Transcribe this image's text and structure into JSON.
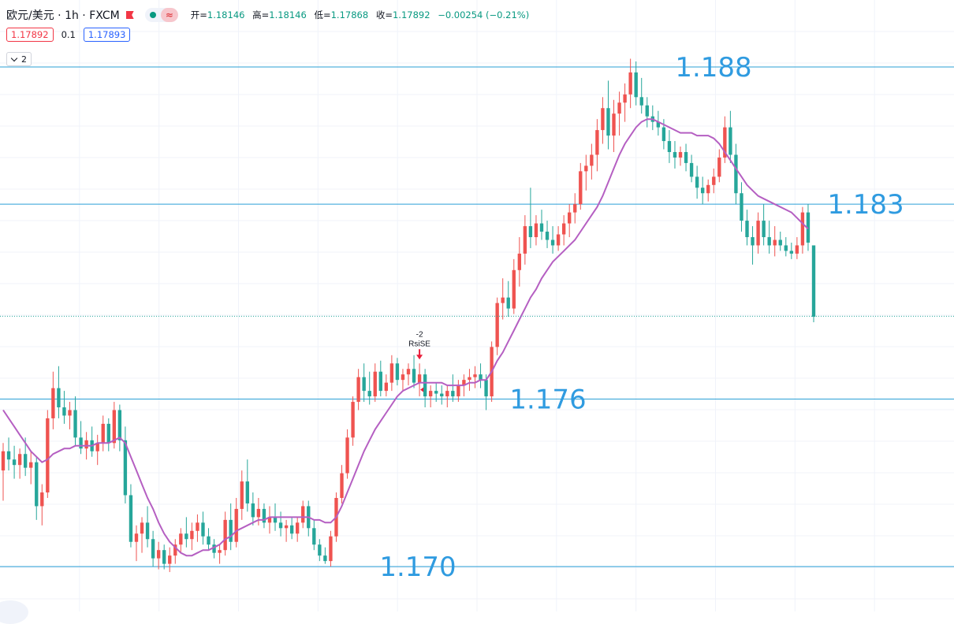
{
  "header": {
    "symbol": "欧元/美元 · 1h · FXCM",
    "ohlc": {
      "open_label": "开=",
      "open": "1.18146",
      "high_label": "高=",
      "high": "1.18146",
      "low_label": "低=",
      "low": "1.17868",
      "close_label": "收=",
      "close": "1.17892",
      "change": "−0.00254 (−0.21%)"
    },
    "sell_price": "1.17892",
    "spread": "0.1",
    "buy_price": "1.17893",
    "collapse_count": "2"
  },
  "colors": {
    "up": "#ef5350",
    "down": "#26a69a",
    "ma": "#b55fc2",
    "level_line": "#2a9fd6",
    "level_text": "#2f9be0",
    "grid": "#f0f3fa"
  },
  "chart_data": {
    "type": "candlestick",
    "indicator": "moving average",
    "price_range": [
      1.1692,
      1.1882
    ],
    "horizontal_levels": [
      {
        "price": 1.188,
        "label": "1.188"
      },
      {
        "price": 1.183,
        "label": "1.183"
      },
      {
        "price": 1.1759,
        "label": "1.176"
      },
      {
        "price": 1.1698,
        "label": "1.170"
      }
    ],
    "current_price": 1.17892,
    "signal": {
      "label_top": "-2",
      "label_bottom": "RsiSE",
      "color": "#e91e3a"
    },
    "signal_candle_index": 75,
    "candles": [
      [
        1.1733,
        1.1743,
        1.1722,
        1.174
      ],
      [
        1.174,
        1.1745,
        1.1733,
        1.1737
      ],
      [
        1.1737,
        1.1742,
        1.173,
        1.1735
      ],
      [
        1.1735,
        1.1741,
        1.173,
        1.1739
      ],
      [
        1.1739,
        1.1745,
        1.1731,
        1.1734
      ],
      [
        1.1734,
        1.174,
        1.1728,
        1.1736
      ],
      [
        1.1736,
        1.1738,
        1.1715,
        1.172
      ],
      [
        1.172,
        1.1728,
        1.1713,
        1.1725
      ],
      [
        1.1725,
        1.1755,
        1.1723,
        1.1752
      ],
      [
        1.1752,
        1.1769,
        1.1748,
        1.1763
      ],
      [
        1.1763,
        1.1771,
        1.1752,
        1.1756
      ],
      [
        1.1756,
        1.1762,
        1.175,
        1.1753
      ],
      [
        1.1753,
        1.1758,
        1.1748,
        1.1755
      ],
      [
        1.1755,
        1.176,
        1.1742,
        1.1745
      ],
      [
        1.1745,
        1.1751,
        1.1739,
        1.1741
      ],
      [
        1.1741,
        1.1747,
        1.1737,
        1.1744
      ],
      [
        1.1744,
        1.1749,
        1.1738,
        1.174
      ],
      [
        1.174,
        1.1746,
        1.1735,
        1.1743
      ],
      [
        1.1743,
        1.1753,
        1.174,
        1.175
      ],
      [
        1.175,
        1.1752,
        1.174,
        1.1743
      ],
      [
        1.1743,
        1.1758,
        1.1741,
        1.1755
      ],
      [
        1.1755,
        1.1757,
        1.174,
        1.1744
      ],
      [
        1.1744,
        1.1749,
        1.1721,
        1.1724
      ],
      [
        1.1724,
        1.1728,
        1.1705,
        1.1707
      ],
      [
        1.1707,
        1.1713,
        1.17,
        1.171
      ],
      [
        1.171,
        1.1716,
        1.1703,
        1.1714
      ],
      [
        1.1714,
        1.172,
        1.1705,
        1.1708
      ],
      [
        1.1708,
        1.1711,
        1.1698,
        1.1701
      ],
      [
        1.1701,
        1.1707,
        1.1697,
        1.1704
      ],
      [
        1.1704,
        1.1706,
        1.1697,
        1.1699
      ],
      [
        1.1699,
        1.1705,
        1.1696,
        1.1702
      ],
      [
        1.1702,
        1.1708,
        1.1699,
        1.1706
      ],
      [
        1.1706,
        1.1712,
        1.1703,
        1.171
      ],
      [
        1.171,
        1.1716,
        1.1705,
        1.1708
      ],
      [
        1.1708,
        1.1714,
        1.1704,
        1.1711
      ],
      [
        1.1711,
        1.1717,
        1.1707,
        1.1714
      ],
      [
        1.1714,
        1.1718,
        1.1706,
        1.1709
      ],
      [
        1.1709,
        1.1712,
        1.1704,
        1.1706
      ],
      [
        1.1706,
        1.1708,
        1.1701,
        1.1703
      ],
      [
        1.1703,
        1.1706,
        1.1699,
        1.1704
      ],
      [
        1.1704,
        1.1718,
        1.1702,
        1.1715
      ],
      [
        1.1715,
        1.1721,
        1.1704,
        1.1707
      ],
      [
        1.1707,
        1.1723,
        1.1705,
        1.1719
      ],
      [
        1.1719,
        1.1733,
        1.1715,
        1.1729
      ],
      [
        1.1729,
        1.1737,
        1.1718,
        1.1721
      ],
      [
        1.1721,
        1.1725,
        1.1713,
        1.1716
      ],
      [
        1.1716,
        1.1723,
        1.1713,
        1.1719
      ],
      [
        1.1719,
        1.1721,
        1.1712,
        1.1714
      ],
      [
        1.1714,
        1.172,
        1.171,
        1.1716
      ],
      [
        1.1716,
        1.1721,
        1.1711,
        1.1714
      ],
      [
        1.1714,
        1.1718,
        1.1709,
        1.1712
      ],
      [
        1.1712,
        1.1715,
        1.1707,
        1.1713
      ],
      [
        1.1713,
        1.1716,
        1.1708,
        1.171
      ],
      [
        1.171,
        1.1716,
        1.1707,
        1.1714
      ],
      [
        1.1714,
        1.1722,
        1.1712,
        1.172
      ],
      [
        1.172,
        1.1722,
        1.1709,
        1.1712
      ],
      [
        1.1712,
        1.1715,
        1.1704,
        1.1706
      ],
      [
        1.1706,
        1.1708,
        1.17,
        1.1702
      ],
      [
        1.1702,
        1.1705,
        1.1699,
        1.17
      ],
      [
        1.17,
        1.1711,
        1.1698,
        1.1709
      ],
      [
        1.1709,
        1.1725,
        1.1707,
        1.1723
      ],
      [
        1.1723,
        1.1735,
        1.1721,
        1.1732
      ],
      [
        1.1732,
        1.1748,
        1.173,
        1.1745
      ],
      [
        1.1745,
        1.176,
        1.1742,
        1.1758
      ],
      [
        1.1758,
        1.177,
        1.1755,
        1.1767
      ],
      [
        1.1767,
        1.1772,
        1.1758,
        1.1762
      ],
      [
        1.1762,
        1.1769,
        1.1757,
        1.176
      ],
      [
        1.176,
        1.1772,
        1.1758,
        1.1769
      ],
      [
        1.1769,
        1.1773,
        1.176,
        1.1762
      ],
      [
        1.1762,
        1.1768,
        1.176,
        1.1765
      ],
      [
        1.1765,
        1.1775,
        1.1762,
        1.1772
      ],
      [
        1.1772,
        1.1774,
        1.1764,
        1.1766
      ],
      [
        1.1766,
        1.177,
        1.1762,
        1.1768
      ],
      [
        1.1768,
        1.1772,
        1.1764,
        1.177
      ],
      [
        1.177,
        1.1775,
        1.1763,
        1.1765
      ],
      [
        1.1765,
        1.1772,
        1.176,
        1.1768
      ],
      [
        1.1768,
        1.177,
        1.1756,
        1.176
      ],
      [
        1.176,
        1.1764,
        1.1756,
        1.1762
      ],
      [
        1.1762,
        1.1765,
        1.1758,
        1.1761
      ],
      [
        1.1761,
        1.1764,
        1.1757,
        1.176
      ],
      [
        1.176,
        1.1764,
        1.1756,
        1.1762
      ],
      [
        1.1762,
        1.1768,
        1.1758,
        1.176
      ],
      [
        1.176,
        1.1766,
        1.1758,
        1.1764
      ],
      [
        1.1764,
        1.1768,
        1.176,
        1.1766
      ],
      [
        1.1766,
        1.177,
        1.1762,
        1.1767
      ],
      [
        1.1767,
        1.1771,
        1.1763,
        1.1768
      ],
      [
        1.1768,
        1.1772,
        1.1763,
        1.1766
      ],
      [
        1.1766,
        1.1768,
        1.1755,
        1.176
      ],
      [
        1.176,
        1.178,
        1.1758,
        1.1778
      ],
      [
        1.1778,
        1.1796,
        1.1775,
        1.1794
      ],
      [
        1.1794,
        1.1803,
        1.1788,
        1.1796
      ],
      [
        1.1796,
        1.1802,
        1.1789,
        1.1792
      ],
      [
        1.1792,
        1.181,
        1.179,
        1.1806
      ],
      [
        1.1806,
        1.1818,
        1.18,
        1.1812
      ],
      [
        1.1812,
        1.1826,
        1.1808,
        1.1822
      ],
      [
        1.1822,
        1.1836,
        1.1814,
        1.1818
      ],
      [
        1.1818,
        1.1826,
        1.1815,
        1.1823
      ],
      [
        1.1823,
        1.1828,
        1.1817,
        1.182
      ],
      [
        1.182,
        1.1824,
        1.1814,
        1.1817
      ],
      [
        1.1817,
        1.1822,
        1.1812,
        1.1815
      ],
      [
        1.1815,
        1.1822,
        1.1813,
        1.1819
      ],
      [
        1.1819,
        1.1826,
        1.1815,
        1.1823
      ],
      [
        1.1823,
        1.183,
        1.1818,
        1.1827
      ],
      [
        1.1827,
        1.1834,
        1.1823,
        1.183
      ],
      [
        1.183,
        1.1845,
        1.1828,
        1.1842
      ],
      [
        1.1842,
        1.1848,
        1.1835,
        1.1844
      ],
      [
        1.1844,
        1.1852,
        1.1839,
        1.1848
      ],
      [
        1.1848,
        1.1861,
        1.1842,
        1.1857
      ],
      [
        1.1857,
        1.1869,
        1.1852,
        1.1865
      ],
      [
        1.1865,
        1.1875,
        1.185,
        1.1855
      ],
      [
        1.1855,
        1.1868,
        1.1849,
        1.1863
      ],
      [
        1.1863,
        1.1871,
        1.1855,
        1.1867
      ],
      [
        1.1867,
        1.1874,
        1.186,
        1.187
      ],
      [
        1.187,
        1.1883,
        1.1865,
        1.1878
      ],
      [
        1.1878,
        1.1882,
        1.1866,
        1.1869
      ],
      [
        1.1869,
        1.1876,
        1.1863,
        1.1866
      ],
      [
        1.1866,
        1.1869,
        1.1858,
        1.1862
      ],
      [
        1.1862,
        1.1866,
        1.1857,
        1.186
      ],
      [
        1.186,
        1.1864,
        1.1855,
        1.1858
      ],
      [
        1.1858,
        1.1861,
        1.185,
        1.1853
      ],
      [
        1.1853,
        1.1857,
        1.1845,
        1.1849
      ],
      [
        1.1849,
        1.1853,
        1.1843,
        1.1847
      ],
      [
        1.1847,
        1.1851,
        1.1844,
        1.1849
      ],
      [
        1.1849,
        1.1852,
        1.1842,
        1.1845
      ],
      [
        1.1845,
        1.1848,
        1.1838,
        1.184
      ],
      [
        1.184,
        1.1844,
        1.1832,
        1.1836
      ],
      [
        1.1836,
        1.184,
        1.183,
        1.1834
      ],
      [
        1.1834,
        1.1839,
        1.1831,
        1.1837
      ],
      [
        1.1837,
        1.1843,
        1.1834,
        1.184
      ],
      [
        1.184,
        1.185,
        1.1838,
        1.1847
      ],
      [
        1.1847,
        1.1862,
        1.1845,
        1.1858
      ],
      [
        1.1858,
        1.1864,
        1.1845,
        1.1848
      ],
      [
        1.1848,
        1.1852,
        1.183,
        1.1834
      ],
      [
        1.1834,
        1.1838,
        1.182,
        1.1824
      ],
      [
        1.1824,
        1.1828,
        1.1815,
        1.1818
      ],
      [
        1.1818,
        1.1822,
        1.1808,
        1.1815
      ],
      [
        1.1815,
        1.1827,
        1.1812,
        1.1824
      ],
      [
        1.1824,
        1.183,
        1.1815,
        1.1818
      ],
      [
        1.1818,
        1.1824,
        1.1812,
        1.1815
      ],
      [
        1.1815,
        1.1822,
        1.1811,
        1.1817
      ],
      [
        1.1817,
        1.182,
        1.1813,
        1.1815
      ],
      [
        1.1815,
        1.1818,
        1.1811,
        1.1813
      ],
      [
        1.1813,
        1.1816,
        1.181,
        1.1812
      ],
      [
        1.1812,
        1.1818,
        1.181,
        1.1815
      ],
      [
        1.1815,
        1.1829,
        1.1812,
        1.1827
      ],
      [
        1.1827,
        1.183,
        1.1813,
        1.1816
      ],
      [
        1.1815,
        1.1815,
        1.1787,
        1.1789
      ]
    ],
    "ma": [
      1.1755,
      1.1752,
      1.1749,
      1.1746,
      1.1743,
      1.174,
      1.1738,
      1.1736,
      1.1737,
      1.1739,
      1.174,
      1.1741,
      1.1741,
      1.1742,
      1.1742,
      1.1742,
      1.1742,
      1.1743,
      1.1743,
      1.1743,
      1.1744,
      1.1745,
      1.1743,
      1.1738,
      1.1733,
      1.1728,
      1.1723,
      1.1719,
      1.1714,
      1.171,
      1.1707,
      1.1705,
      1.1703,
      1.1702,
      1.1702,
      1.1703,
      1.1704,
      1.1704,
      1.1705,
      1.1706,
      1.1708,
      1.1709,
      1.1711,
      1.1712,
      1.1713,
      1.1714,
      1.1715,
      1.1715,
      1.1716,
      1.1716,
      1.1716,
      1.1716,
      1.1716,
      1.1716,
      1.1716,
      1.1716,
      1.1715,
      1.1715,
      1.1714,
      1.1714,
      1.1716,
      1.172,
      1.1725,
      1.173,
      1.1735,
      1.174,
      1.1744,
      1.1748,
      1.1751,
      1.1754,
      1.1757,
      1.176,
      1.1762,
      1.1763,
      1.1764,
      1.1765,
      1.1765,
      1.1765,
      1.1765,
      1.1765,
      1.1764,
      1.1764,
      1.1764,
      1.1764,
      1.1765,
      1.1765,
      1.1766,
      1.1766,
      1.1769,
      1.1773,
      1.1776,
      1.178,
      1.1784,
      1.1788,
      1.1792,
      1.1796,
      1.1799,
      1.1803,
      1.1806,
      1.1809,
      1.1811,
      1.1813,
      1.1815,
      1.1817,
      1.182,
      1.1823,
      1.1826,
      1.1829,
      1.1833,
      1.1838,
      1.1843,
      1.1848,
      1.1852,
      1.1855,
      1.1858,
      1.186,
      1.1861,
      1.1861,
      1.186,
      1.1859,
      1.1858,
      1.1857,
      1.1856,
      1.1856,
      1.1856,
      1.1855,
      1.1855,
      1.1855,
      1.1854,
      1.1852,
      1.1849,
      1.1846,
      1.1843,
      1.184,
      1.1837,
      1.1835,
      1.1833,
      1.1832,
      1.1831,
      1.183,
      1.1829,
      1.1828,
      1.1827,
      1.1825,
      1.1823,
      1.1821
    ]
  }
}
